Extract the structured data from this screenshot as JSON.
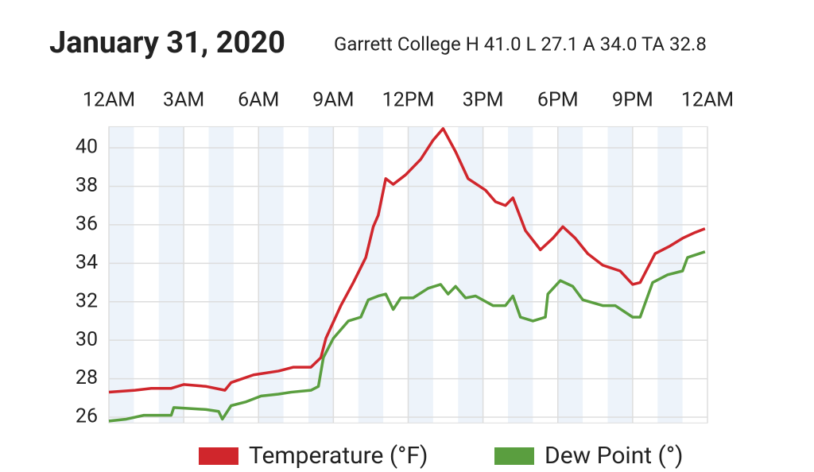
{
  "chart_data": {
    "type": "line",
    "title": "January 31, 2020",
    "subtitle": "Garrett College H 41.0 L 27.1 A 34.0 TA 32.8",
    "xlim": [
      0,
      24
    ],
    "xticks": [
      {
        "value": 0,
        "label": "12AM"
      },
      {
        "value": 3,
        "label": "3AM"
      },
      {
        "value": 6,
        "label": "6AM"
      },
      {
        "value": 9,
        "label": "9AM"
      },
      {
        "value": 12,
        "label": "12PM"
      },
      {
        "value": 15,
        "label": "3PM"
      },
      {
        "value": 18,
        "label": "6PM"
      },
      {
        "value": 21,
        "label": "9PM"
      },
      {
        "value": 24,
        "label": "12AM"
      }
    ],
    "ylim": [
      25.7,
      41.1
    ],
    "yticks": [
      26,
      28,
      30,
      32,
      34,
      36,
      38,
      40
    ],
    "grid": true,
    "legend": "bottom",
    "series": [
      {
        "name": "Temperature (°F)",
        "color": "#d0262c",
        "x": [
          0,
          1.05,
          1.7,
          2.5,
          3.0,
          3.9,
          4.65,
          4.9,
          5.8,
          6.8,
          7.4,
          8.1,
          8.5,
          8.7,
          9.3,
          9.8,
          10.3,
          10.6,
          10.8,
          11.1,
          11.4,
          11.9,
          12.5,
          13.0,
          13.4,
          13.9,
          14.4,
          15.1,
          15.5,
          15.9,
          16.2,
          16.7,
          17.3,
          17.8,
          18.2,
          18.7,
          19.2,
          19.8,
          20.5,
          21.0,
          21.3,
          21.9,
          22.5,
          23.0,
          23.5,
          23.9
        ],
        "values": [
          27.3,
          27.4,
          27.5,
          27.5,
          27.7,
          27.6,
          27.4,
          27.8,
          28.2,
          28.4,
          28.6,
          28.6,
          29.1,
          30.1,
          31.8,
          33.0,
          34.3,
          35.9,
          36.5,
          38.4,
          38.1,
          38.6,
          39.4,
          40.4,
          41.0,
          39.8,
          38.4,
          37.8,
          37.2,
          37.0,
          37.4,
          35.7,
          34.7,
          35.3,
          35.9,
          35.3,
          34.5,
          33.9,
          33.6,
          32.9,
          33.0,
          34.5,
          34.9,
          35.3,
          35.6,
          35.8
        ]
      },
      {
        "name": "Dew Point (°)",
        "color": "#5a9e3f",
        "x": [
          0,
          0.7,
          1.4,
          2.5,
          2.6,
          3.9,
          4.4,
          4.55,
          4.9,
          5.5,
          6.1,
          6.8,
          7.3,
          8.1,
          8.4,
          8.6,
          9.0,
          9.6,
          10.1,
          10.4,
          10.8,
          11.1,
          11.4,
          11.7,
          12.2,
          12.8,
          13.3,
          13.6,
          13.9,
          14.3,
          14.7,
          15.4,
          15.9,
          16.2,
          16.5,
          17.0,
          17.5,
          17.6,
          18.1,
          18.6,
          19.0,
          19.8,
          20.3,
          21.0,
          21.3,
          21.8,
          22.4,
          23.0,
          23.2,
          23.9
        ],
        "values": [
          25.8,
          25.9,
          26.1,
          26.1,
          26.5,
          26.4,
          26.3,
          25.9,
          26.6,
          26.8,
          27.1,
          27.2,
          27.3,
          27.4,
          27.6,
          29.1,
          30.1,
          31.0,
          31.2,
          32.1,
          32.3,
          32.4,
          31.6,
          32.2,
          32.2,
          32.7,
          32.9,
          32.4,
          32.8,
          32.2,
          32.3,
          31.8,
          31.8,
          32.3,
          31.2,
          31.0,
          31.2,
          32.4,
          33.1,
          32.8,
          32.1,
          31.8,
          31.8,
          31.2,
          31.2,
          33.0,
          33.4,
          33.6,
          34.3,
          34.6
        ]
      }
    ]
  }
}
